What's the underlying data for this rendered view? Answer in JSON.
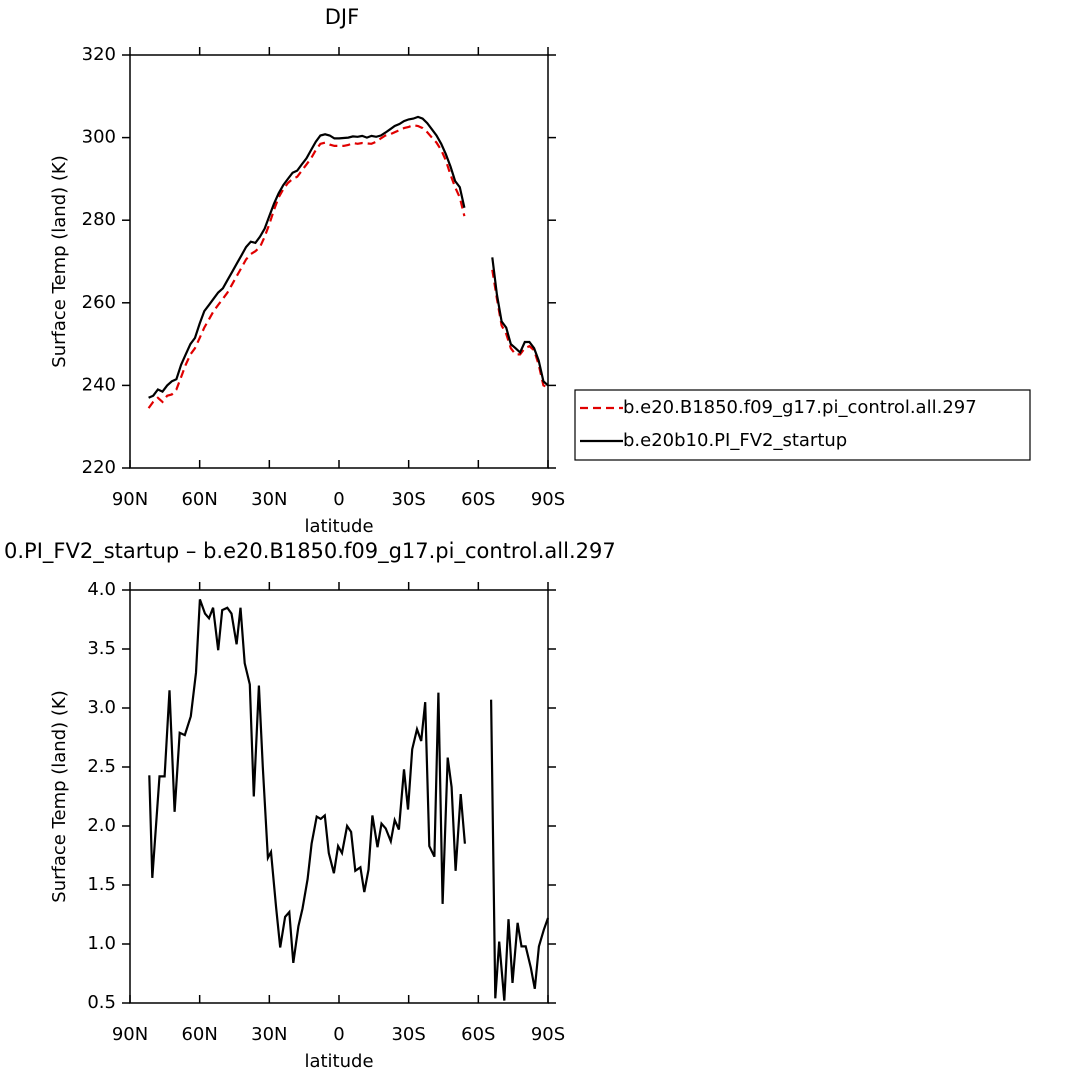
{
  "chart_data": [
    {
      "type": "line",
      "title": "DJF",
      "xlabel": "latitude",
      "ylabel": "Surface Temp (land) (K)",
      "x": [
        82,
        80,
        78,
        76,
        74,
        72,
        70,
        68,
        66,
        64,
        62,
        60,
        58,
        56,
        54,
        52,
        50,
        48,
        46,
        44,
        42,
        40,
        38,
        36,
        34,
        32,
        30,
        28,
        26,
        24,
        22,
        20,
        18,
        16,
        14,
        12,
        10,
        8,
        6,
        4,
        2,
        0,
        -2,
        -4,
        -6,
        -8,
        -10,
        -12,
        -14,
        -16,
        -18,
        -20,
        -22,
        -24,
        -26,
        -28,
        -30,
        -32,
        -34,
        -36,
        -38,
        -40,
        -42,
        -44,
        -46,
        -48,
        -50,
        -52,
        -54,
        -60,
        -66,
        -68,
        -70,
        -72,
        -74,
        -76,
        -78,
        -80,
        -82,
        -84,
        -86,
        -88,
        -90
      ],
      "xlim": [
        90,
        -90
      ],
      "xticks": [
        {
          "value": 90,
          "label": "90N"
        },
        {
          "value": 60,
          "label": "60N"
        },
        {
          "value": 30,
          "label": "30N"
        },
        0,
        {
          "value": -30,
          "label": "30S"
        },
        {
          "value": -60,
          "label": "60S"
        },
        {
          "value": -90,
          "label": "90S"
        }
      ],
      "ylim": [
        220,
        320
      ],
      "yticks": [
        220,
        240,
        260,
        280,
        300,
        320
      ],
      "legend_position": "right",
      "series": [
        {
          "name": "b.e20.B1850.f09_g17.pi_control.all.297",
          "color": "#e00000",
          "dashed": true,
          "values": [
            234.5,
            236,
            237,
            236,
            237.5,
            237.8,
            239,
            242,
            245,
            247.5,
            249,
            251.5,
            254,
            256,
            258,
            259.5,
            261,
            262.5,
            264.5,
            266.5,
            268.5,
            270.5,
            271.8,
            272.5,
            273.5,
            276,
            279,
            282.5,
            285.5,
            287.5,
            289,
            290,
            290.5,
            292,
            293.5,
            295,
            297,
            298.5,
            298.8,
            298.3,
            298,
            298,
            298,
            298.2,
            298.7,
            298.5,
            298.7,
            298.6,
            298.5,
            299,
            299.8,
            300.5,
            300.8,
            301.3,
            301.8,
            302.3,
            302.6,
            303,
            302.8,
            302.3,
            301.3,
            300,
            298.8,
            297,
            294.5,
            291,
            288,
            285.5,
            281,
            null,
            268,
            261,
            254.5,
            252.5,
            249,
            247.5,
            247.5,
            249,
            249.5,
            248.5,
            245,
            240,
            239.5
          ]
        },
        {
          "name": "b.e20b10.PI_FV2_startup",
          "color": "#000000",
          "dashed": false,
          "values": [
            237,
            237.5,
            239,
            238.5,
            240,
            241,
            241.5,
            245,
            247.5,
            250,
            251.5,
            255,
            258,
            259.5,
            261,
            262.5,
            263.5,
            265.5,
            267.5,
            269.5,
            271.5,
            273.5,
            274.8,
            274.5,
            276,
            278,
            281,
            284,
            286.5,
            288.5,
            290,
            291.5,
            292,
            293.5,
            295,
            297,
            299,
            300.5,
            300.8,
            300.5,
            299.8,
            299.8,
            299.9,
            300,
            300.3,
            300.2,
            300.4,
            300,
            300.4,
            300.2,
            300.5,
            301.2,
            302,
            302.8,
            303.3,
            304,
            304.4,
            304.6,
            305,
            304.6,
            303.5,
            302,
            300.5,
            298.5,
            296,
            293,
            289.5,
            288,
            283,
            null,
            271,
            262,
            255.5,
            254,
            250,
            249,
            248,
            250.5,
            250.5,
            249,
            246,
            241,
            240
          ]
        }
      ]
    },
    {
      "type": "line",
      "title": "0.PI_FV2_startup – b.e20.B1850.f09_g17.pi_control.all.297",
      "xlabel": "latitude",
      "ylabel": "Surface Temp (land) (K)",
      "x": [
        81.7,
        80.4,
        77.3,
        75.1,
        73.0,
        70.8,
        68.6,
        66.4,
        63.8,
        61.6,
        59.9,
        57.7,
        56.0,
        54.2,
        52.0,
        50.3,
        48.1,
        46.3,
        44.1,
        42.4,
        40.6,
        38.4,
        36.7,
        34.5,
        32.8,
        30.6,
        29.3,
        27.1,
        25.3,
        23.2,
        21.4,
        19.7,
        17.5,
        15.7,
        13.5,
        11.8,
        9.6,
        7.9,
        6.1,
        4.4,
        2.2,
        0.4,
        -1.3,
        -3.5,
        -5.2,
        -7.0,
        -9.2,
        -10.9,
        -12.7,
        -14.4,
        -16.6,
        -18.3,
        -20.1,
        -22.3,
        -24.0,
        -25.8,
        -28.0,
        -29.7,
        -31.5,
        -33.6,
        -35.4,
        -37.1,
        -38.9,
        -41.1,
        -42.8,
        -44.6,
        -46.8,
        -48.5,
        -50.2,
        -52.4,
        -54.2,
        -60,
        -65.5,
        -67.3,
        -69.0,
        -71.2,
        -73.0,
        -74.7,
        -76.9,
        -78.6,
        -80.4,
        -82.6,
        -84.3,
        -86.1,
        -88.2,
        -90.0
      ],
      "xlim": [
        90,
        -90
      ],
      "xticks": [
        {
          "value": 90,
          "label": "90N"
        },
        {
          "value": 60,
          "label": "60N"
        },
        {
          "value": 30,
          "label": "30N"
        },
        0,
        {
          "value": -30,
          "label": "30S"
        },
        {
          "value": -60,
          "label": "60S"
        },
        {
          "value": -90,
          "label": "90S"
        }
      ],
      "ylim": [
        0.5,
        4
      ],
      "yticks": [
        0.5,
        {
          "value": 1,
          "label": "1.0"
        },
        1.5,
        {
          "value": 2,
          "label": "2.0"
        },
        2.5,
        {
          "value": 3,
          "label": "3.0"
        },
        3.5,
        {
          "value": 4,
          "label": "4.0"
        }
      ],
      "series": [
        {
          "color": "#000000",
          "dashed": false,
          "values": [
            2.43,
            1.56,
            2.42,
            2.42,
            3.15,
            2.12,
            2.79,
            2.77,
            2.93,
            3.3,
            3.92,
            3.8,
            3.76,
            3.85,
            3.49,
            3.83,
            3.85,
            3.8,
            3.54,
            3.85,
            3.38,
            3.2,
            2.25,
            3.19,
            2.5,
            1.73,
            1.78,
            1.31,
            0.97,
            1.23,
            1.27,
            0.84,
            1.15,
            1.3,
            1.55,
            1.85,
            2.08,
            2.06,
            2.09,
            1.77,
            1.6,
            1.83,
            1.77,
            2.0,
            1.95,
            1.62,
            1.65,
            1.44,
            1.63,
            2.09,
            1.82,
            2.02,
            1.98,
            1.87,
            2.05,
            1.97,
            2.48,
            2.14,
            2.65,
            2.82,
            2.72,
            3.05,
            1.83,
            1.74,
            3.13,
            1.34,
            2.58,
            2.33,
            1.62,
            2.27,
            1.85,
            null,
            3.07,
            0.54,
            1.02,
            0.52,
            1.21,
            0.67,
            1.18,
            0.98,
            0.98,
            0.8,
            0.62,
            0.98,
            1.12,
            1.22
          ]
        }
      ]
    }
  ]
}
